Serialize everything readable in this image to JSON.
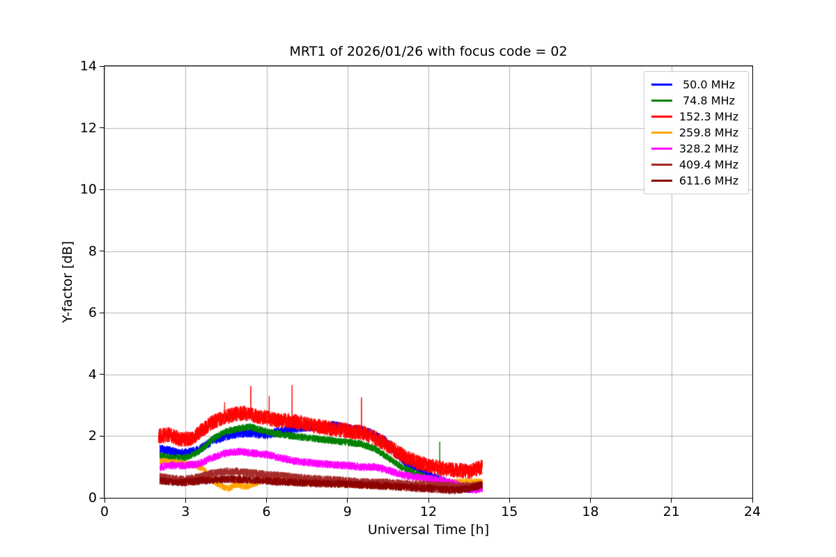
{
  "chart_data": {
    "type": "line",
    "title": "MRT1 of 2026/01/26 with focus code = 02",
    "xlabel": "Universal Time [h]",
    "ylabel": "Y-factor [dB]",
    "xlim": [
      0,
      24
    ],
    "ylim": [
      0,
      14
    ],
    "xticks": [
      0,
      3,
      6,
      9,
      12,
      15,
      18,
      21,
      24
    ],
    "yticks": [
      0,
      2,
      4,
      6,
      8,
      10,
      12,
      14
    ],
    "grid": true,
    "grid_color": "#b0b0b0",
    "legend_position": "upper right",
    "series": [
      {
        "name": " 50.0 MHz",
        "color": "#0000ff",
        "noise": 0.15,
        "range": [
          2.05,
          14.0
        ],
        "keypoints": [
          [
            2.05,
            1.6
          ],
          [
            2.5,
            1.5
          ],
          [
            3,
            1.45
          ],
          [
            3.5,
            1.55
          ],
          [
            4,
            1.85
          ],
          [
            4.5,
            2.0
          ],
          [
            5,
            2.1
          ],
          [
            5.5,
            2.1
          ],
          [
            6,
            2.05
          ],
          [
            6.5,
            2.15
          ],
          [
            7,
            2.25
          ],
          [
            7.5,
            2.3
          ],
          [
            8,
            2.3
          ],
          [
            8.5,
            2.35
          ],
          [
            9,
            2.25
          ],
          [
            9.5,
            2.2
          ],
          [
            10,
            2.05
          ],
          [
            10.4,
            1.85
          ],
          [
            10.8,
            1.45
          ],
          [
            11.2,
            1.1
          ],
          [
            11.6,
            0.95
          ],
          [
            12,
            0.75
          ],
          [
            12.5,
            0.55
          ],
          [
            13,
            0.35
          ],
          [
            13.5,
            0.3
          ],
          [
            14,
            0.35
          ]
        ],
        "spikes": []
      },
      {
        "name": " 74.8 MHz",
        "color": "#008000",
        "noise": 0.12,
        "range": [
          2.05,
          14.0
        ],
        "keypoints": [
          [
            2.05,
            1.35
          ],
          [
            2.5,
            1.3
          ],
          [
            3,
            1.3
          ],
          [
            3.5,
            1.5
          ],
          [
            4,
            1.9
          ],
          [
            4.5,
            2.15
          ],
          [
            5,
            2.25
          ],
          [
            5.4,
            2.3
          ],
          [
            5.8,
            2.2
          ],
          [
            6.2,
            2.1
          ],
          [
            6.6,
            2.05
          ],
          [
            7,
            2.0
          ],
          [
            7.5,
            1.95
          ],
          [
            8,
            1.9
          ],
          [
            8.5,
            1.85
          ],
          [
            9,
            1.8
          ],
          [
            9.5,
            1.75
          ],
          [
            10,
            1.6
          ],
          [
            10.5,
            1.3
          ],
          [
            11,
            1.0
          ],
          [
            11.5,
            0.8
          ],
          [
            12,
            0.62
          ],
          [
            12.5,
            0.5
          ],
          [
            13,
            0.42
          ],
          [
            13.5,
            0.35
          ],
          [
            14,
            0.4
          ]
        ],
        "spikes": [
          [
            12.42,
            1.82
          ]
        ]
      },
      {
        "name": "152.3 MHz",
        "color": "#ff0000",
        "noise": 0.25,
        "range": [
          2.0,
          14.0
        ],
        "keypoints": [
          [
            2,
            2.0
          ],
          [
            2.4,
            2.05
          ],
          [
            2.8,
            1.9
          ],
          [
            3.2,
            1.9
          ],
          [
            3.6,
            2.2
          ],
          [
            4,
            2.45
          ],
          [
            4.4,
            2.6
          ],
          [
            4.8,
            2.7
          ],
          [
            5.2,
            2.75
          ],
          [
            5.6,
            2.65
          ],
          [
            6,
            2.6
          ],
          [
            6.4,
            2.5
          ],
          [
            6.8,
            2.5
          ],
          [
            7.2,
            2.45
          ],
          [
            7.6,
            2.35
          ],
          [
            8,
            2.3
          ],
          [
            8.4,
            2.25
          ],
          [
            8.8,
            2.2
          ],
          [
            9.2,
            2.15
          ],
          [
            9.6,
            2.1
          ],
          [
            10,
            1.95
          ],
          [
            10.4,
            1.75
          ],
          [
            10.8,
            1.5
          ],
          [
            11.2,
            1.3
          ],
          [
            11.6,
            1.15
          ],
          [
            12,
            1.05
          ],
          [
            12.5,
            0.95
          ],
          [
            13,
            0.9
          ],
          [
            13.5,
            0.85
          ],
          [
            13.8,
            0.95
          ],
          [
            14,
            1.0
          ]
        ],
        "spikes": [
          [
            4.45,
            3.1
          ],
          [
            5.42,
            3.62
          ],
          [
            6.1,
            3.3
          ],
          [
            6.95,
            3.65
          ],
          [
            9.52,
            3.25
          ]
        ]
      },
      {
        "name": "259.8 MHz",
        "color": "#ffa500",
        "noise": 0.12,
        "range": [
          2.05,
          14.0
        ],
        "keypoints": [
          [
            2.05,
            1.2
          ],
          [
            2.5,
            1.15
          ],
          [
            3,
            1.1
          ],
          [
            3.4,
            1.05
          ],
          [
            3.7,
            0.9
          ],
          [
            4,
            0.55
          ],
          [
            4.3,
            0.4
          ],
          [
            4.6,
            0.3
          ],
          [
            4.9,
            0.45
          ],
          [
            5.2,
            0.35
          ],
          [
            5.5,
            0.45
          ],
          [
            5.8,
            0.55
          ],
          [
            6.1,
            0.6
          ],
          [
            6.5,
            0.55
          ],
          [
            7,
            0.52
          ],
          [
            7.5,
            0.5
          ],
          [
            8,
            0.5
          ],
          [
            8.5,
            0.47
          ],
          [
            9,
            0.45
          ],
          [
            9.5,
            0.42
          ],
          [
            10,
            0.42
          ],
          [
            10.5,
            0.4
          ],
          [
            11,
            0.38
          ],
          [
            11.5,
            0.4
          ],
          [
            12,
            0.45
          ],
          [
            12.5,
            0.48
          ],
          [
            13,
            0.5
          ],
          [
            13.5,
            0.52
          ],
          [
            14,
            0.5
          ]
        ],
        "spikes": []
      },
      {
        "name": "328.2 MHz",
        "color": "#ff00ff",
        "noise": 0.13,
        "range": [
          2.05,
          14.0
        ],
        "keypoints": [
          [
            2.05,
            1.0
          ],
          [
            2.5,
            1.05
          ],
          [
            3,
            1.05
          ],
          [
            3.5,
            1.1
          ],
          [
            4,
            1.3
          ],
          [
            4.5,
            1.45
          ],
          [
            5,
            1.5
          ],
          [
            5.5,
            1.45
          ],
          [
            6,
            1.4
          ],
          [
            6.5,
            1.3
          ],
          [
            7,
            1.2
          ],
          [
            7.5,
            1.15
          ],
          [
            8,
            1.1
          ],
          [
            8.5,
            1.07
          ],
          [
            9,
            1.05
          ],
          [
            9.5,
            1.0
          ],
          [
            10,
            1.0
          ],
          [
            10.5,
            0.9
          ],
          [
            11,
            0.75
          ],
          [
            11.5,
            0.67
          ],
          [
            12,
            0.62
          ],
          [
            12.5,
            0.57
          ],
          [
            13,
            0.45
          ],
          [
            13.4,
            0.3
          ],
          [
            13.7,
            0.27
          ],
          [
            14,
            0.3
          ]
        ],
        "spikes": []
      },
      {
        "name": "409.4 MHz",
        "color": "#a52a2a",
        "noise": 0.13,
        "range": [
          2.05,
          14.0
        ],
        "keypoints": [
          [
            2.05,
            0.68
          ],
          [
            2.5,
            0.62
          ],
          [
            3,
            0.6
          ],
          [
            3.5,
            0.68
          ],
          [
            4,
            0.8
          ],
          [
            4.5,
            0.85
          ],
          [
            5,
            0.85
          ],
          [
            5.5,
            0.8
          ],
          [
            6,
            0.75
          ],
          [
            6.5,
            0.72
          ],
          [
            7,
            0.68
          ],
          [
            7.5,
            0.63
          ],
          [
            8,
            0.6
          ],
          [
            8.5,
            0.58
          ],
          [
            9,
            0.55
          ],
          [
            9.5,
            0.52
          ],
          [
            10,
            0.5
          ],
          [
            10.5,
            0.5
          ],
          [
            11,
            0.47
          ],
          [
            11.5,
            0.45
          ],
          [
            12,
            0.42
          ],
          [
            12.5,
            0.4
          ],
          [
            13,
            0.38
          ],
          [
            13.5,
            0.38
          ],
          [
            14,
            0.42
          ]
        ],
        "spikes": []
      },
      {
        "name": "611.6 MHz",
        "color": "#8b0000",
        "noise": 0.13,
        "range": [
          2.05,
          14.0
        ],
        "keypoints": [
          [
            2.05,
            0.55
          ],
          [
            2.5,
            0.52
          ],
          [
            3,
            0.5
          ],
          [
            3.5,
            0.55
          ],
          [
            4,
            0.58
          ],
          [
            4.5,
            0.6
          ],
          [
            5,
            0.6
          ],
          [
            5.5,
            0.58
          ],
          [
            6,
            0.55
          ],
          [
            6.5,
            0.52
          ],
          [
            7,
            0.5
          ],
          [
            7.5,
            0.48
          ],
          [
            8,
            0.46
          ],
          [
            8.5,
            0.45
          ],
          [
            9,
            0.44
          ],
          [
            9.5,
            0.42
          ],
          [
            10,
            0.4
          ],
          [
            10.5,
            0.38
          ],
          [
            11,
            0.35
          ],
          [
            11.5,
            0.32
          ],
          [
            12,
            0.3
          ],
          [
            12.5,
            0.27
          ],
          [
            13,
            0.25
          ],
          [
            13.5,
            0.3
          ],
          [
            14,
            0.42
          ]
        ],
        "spikes": []
      }
    ]
  }
}
